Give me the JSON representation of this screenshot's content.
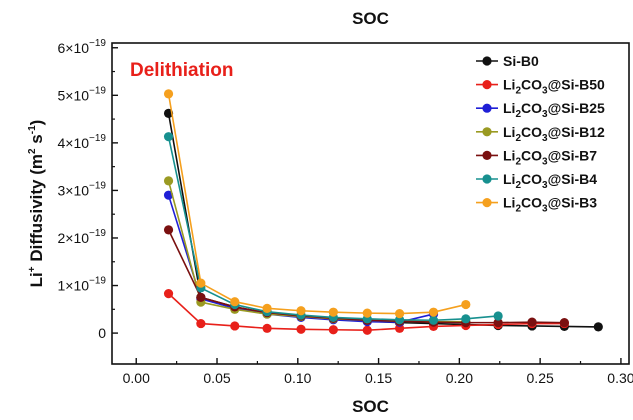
{
  "chart_data": {
    "type": "line",
    "title": "SOC",
    "xlabel": "SOC",
    "ylabel": {
      "base": "Li",
      "sup1": "+",
      "mid": " Diffusivity (m",
      "sup2": "2",
      "mid2": " s",
      "sup3": "-1",
      "end": ")"
    },
    "annotation": {
      "text": "Delithiation",
      "color": "#e8201a",
      "position": "top-left"
    },
    "xlim": [
      -0.015,
      0.305
    ],
    "ylim": [
      -0.65,
      6.1
    ],
    "y_exponent_label": "×10",
    "y_exponent": "−19",
    "x_ticks": [
      {
        "value": 0.0,
        "label": "0.00"
      },
      {
        "value": 0.05,
        "label": "0.05"
      },
      {
        "value": 0.1,
        "label": "0.10"
      },
      {
        "value": 0.15,
        "label": "0.15"
      },
      {
        "value": 0.2,
        "label": "0.20"
      },
      {
        "value": 0.25,
        "label": "0.25"
      },
      {
        "value": 0.3,
        "label": "0.30"
      }
    ],
    "y_ticks": [
      {
        "value": 0,
        "mantissa": "0"
      },
      {
        "value": 1,
        "mantissa": "1"
      },
      {
        "value": 2,
        "mantissa": "2"
      },
      {
        "value": 3,
        "mantissa": "3"
      },
      {
        "value": 4,
        "mantissa": "4"
      },
      {
        "value": 5,
        "mantissa": "5"
      },
      {
        "value": 6,
        "mantissa": "6"
      }
    ],
    "legend_position": "top-right",
    "series": [
      {
        "name": "Si-B0",
        "prefix": "Si-B0",
        "sub": "",
        "suffix": "",
        "color": "#111111",
        "x": [
          0.02,
          0.04,
          0.061,
          0.081,
          0.102,
          0.122,
          0.143,
          0.163,
          0.184,
          0.204,
          0.224,
          0.245,
          0.265,
          0.286
        ],
        "y": [
          4.62,
          0.75,
          0.55,
          0.42,
          0.35,
          0.3,
          0.25,
          0.22,
          0.2,
          0.18,
          0.16,
          0.15,
          0.14,
          0.13
        ]
      },
      {
        "name": "Li2CO3@Si-B50",
        "prefix": "Li",
        "sub": "2",
        "suffix": "CO",
        "sub2": "3",
        "tail": "@Si-B50",
        "color": "#e8201a",
        "x": [
          0.02,
          0.04,
          0.061,
          0.081,
          0.102,
          0.122,
          0.143,
          0.163,
          0.184,
          0.204,
          0.224,
          0.245,
          0.265
        ],
        "y": [
          0.83,
          0.2,
          0.15,
          0.1,
          0.08,
          0.07,
          0.06,
          0.1,
          0.14,
          0.16,
          0.18,
          0.2,
          0.2
        ]
      },
      {
        "name": "Li2CO3@Si-B25",
        "prefix": "Li",
        "sub": "2",
        "suffix": "CO",
        "sub2": "3",
        "tail": "@Si-B25",
        "color": "#1f1fd6",
        "x": [
          0.02,
          0.04,
          0.061,
          0.081,
          0.102,
          0.122,
          0.143,
          0.163,
          0.184
        ],
        "y": [
          2.9,
          0.72,
          0.52,
          0.4,
          0.33,
          0.28,
          0.24,
          0.23,
          0.4
        ]
      },
      {
        "name": "Li2CO3@Si-B12",
        "prefix": "Li",
        "sub": "2",
        "suffix": "CO",
        "sub2": "3",
        "tail": "@Si-B12",
        "color": "#9a9a22",
        "x": [
          0.02,
          0.04,
          0.061,
          0.081,
          0.102,
          0.122,
          0.143,
          0.163,
          0.184,
          0.204
        ],
        "y": [
          3.2,
          0.65,
          0.5,
          0.4,
          0.35,
          0.3,
          0.27,
          0.25,
          0.24,
          0.24
        ]
      },
      {
        "name": "Li2CO3@Si-B7",
        "prefix": "Li",
        "sub": "2",
        "suffix": "CO",
        "sub2": "3",
        "tail": "@Si-B7",
        "color": "#7a1010",
        "x": [
          0.02,
          0.04,
          0.061,
          0.081,
          0.102,
          0.122,
          0.143,
          0.163,
          0.184,
          0.204,
          0.224,
          0.245,
          0.265
        ],
        "y": [
          2.17,
          0.75,
          0.55,
          0.43,
          0.36,
          0.31,
          0.27,
          0.25,
          0.23,
          0.22,
          0.22,
          0.23,
          0.22
        ]
      },
      {
        "name": "Li2CO3@Si-B4",
        "prefix": "Li",
        "sub": "2",
        "suffix": "CO",
        "sub2": "3",
        "tail": "@Si-B4",
        "color": "#17908f",
        "x": [
          0.02,
          0.04,
          0.061,
          0.081,
          0.102,
          0.122,
          0.143,
          0.163,
          0.184,
          0.204,
          0.224
        ],
        "y": [
          4.13,
          0.95,
          0.6,
          0.45,
          0.38,
          0.33,
          0.3,
          0.28,
          0.27,
          0.3,
          0.36
        ]
      },
      {
        "name": "Li2CO3@Si-B3",
        "prefix": "Li",
        "sub": "2",
        "suffix": "CO",
        "sub2": "3",
        "tail": "@Si-B3",
        "color": "#f5a01e",
        "x": [
          0.02,
          0.04,
          0.061,
          0.081,
          0.102,
          0.122,
          0.143,
          0.163,
          0.184,
          0.204
        ],
        "y": [
          5.03,
          1.05,
          0.66,
          0.52,
          0.47,
          0.44,
          0.42,
          0.41,
          0.44,
          0.6
        ]
      }
    ]
  }
}
